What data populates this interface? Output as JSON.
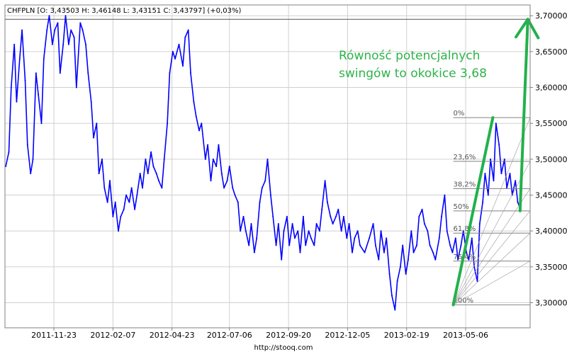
{
  "chart_data": {
    "type": "line",
    "header": "CHFPLN [O: 3,43503  H: 3,46148  L: 3,43151  C: 3,43797]  (+0,03%)",
    "source": "http://stooq.com",
    "xlabel": "",
    "ylabel": "",
    "ylim": [
      3.265,
      3.715
    ],
    "xlim": [
      "2011-09-21",
      "2013-07-28"
    ],
    "grid": true,
    "x_ticks": [
      "2011-11-23",
      "2012-02-07",
      "2012-04-23",
      "2012-07-06",
      "2012-09-20",
      "2012-12-05",
      "2013-02-19",
      "2013-05-06"
    ],
    "y_ticks": [
      "3,30000",
      "3,35000",
      "3,40000",
      "3,45000",
      "3,50000",
      "3,55000",
      "3,60000",
      "3,65000",
      "3,70000"
    ],
    "y_tick_values": [
      3.3,
      3.35,
      3.4,
      3.45,
      3.5,
      3.55,
      3.6,
      3.65,
      3.7
    ],
    "reference_line_value": 3.695,
    "series": [
      {
        "color": "#0000ff",
        "x": [
          "2011-09-22",
          "2011-09-26",
          "2011-09-29",
          "2011-10-03",
          "2011-10-06",
          "2011-10-10",
          "2011-10-13",
          "2011-10-17",
          "2011-10-20",
          "2011-10-24",
          "2011-10-27",
          "2011-10-31",
          "2011-11-03",
          "2011-11-07",
          "2011-11-10",
          "2011-11-14",
          "2011-11-17",
          "2011-11-21",
          "2011-11-24",
          "2011-11-28",
          "2011-12-01",
          "2011-12-05",
          "2011-12-08",
          "2011-12-12",
          "2011-12-15",
          "2011-12-19",
          "2011-12-22",
          "2011-12-27",
          "2011-12-30",
          "2012-01-03",
          "2012-01-06",
          "2012-01-10",
          "2012-01-13",
          "2012-01-17",
          "2012-01-20",
          "2012-01-24",
          "2012-01-27",
          "2012-01-31",
          "2012-02-03",
          "2012-02-07",
          "2012-02-10",
          "2012-02-14",
          "2012-02-17",
          "2012-02-21",
          "2012-02-24",
          "2012-02-28",
          "2012-03-02",
          "2012-03-06",
          "2012-03-09",
          "2012-03-13",
          "2012-03-16",
          "2012-03-20",
          "2012-03-23",
          "2012-03-27",
          "2012-03-30",
          "2012-04-03",
          "2012-04-06",
          "2012-04-10",
          "2012-04-13",
          "2012-04-17",
          "2012-04-20",
          "2012-04-24",
          "2012-04-27",
          "2012-05-02",
          "2012-05-07",
          "2012-05-10",
          "2012-05-14",
          "2012-05-17",
          "2012-05-21",
          "2012-05-24",
          "2012-05-28",
          "2012-05-31",
          "2012-06-05",
          "2012-06-08",
          "2012-06-12",
          "2012-06-15",
          "2012-06-19",
          "2012-06-22",
          "2012-06-26",
          "2012-06-29",
          "2012-07-03",
          "2012-07-06",
          "2012-07-10",
          "2012-07-13",
          "2012-07-17",
          "2012-07-20",
          "2012-07-24",
          "2012-07-27",
          "2012-07-31",
          "2012-08-03",
          "2012-08-07",
          "2012-08-10",
          "2012-08-14",
          "2012-08-17",
          "2012-08-21",
          "2012-08-24",
          "2012-08-28",
          "2012-08-31",
          "2012-09-04",
          "2012-09-07",
          "2012-09-11",
          "2012-09-14",
          "2012-09-18",
          "2012-09-21",
          "2012-09-25",
          "2012-09-28",
          "2012-10-02",
          "2012-10-05",
          "2012-10-09",
          "2012-10-12",
          "2012-10-16",
          "2012-10-19",
          "2012-10-23",
          "2012-10-26",
          "2012-10-30",
          "2012-11-02",
          "2012-11-06",
          "2012-11-09",
          "2012-11-13",
          "2012-11-16",
          "2012-11-20",
          "2012-11-23",
          "2012-11-27",
          "2012-11-30",
          "2012-12-04",
          "2012-12-07",
          "2012-12-11",
          "2012-12-14",
          "2012-12-18",
          "2012-12-21",
          "2012-12-27",
          "2013-01-02",
          "2013-01-07",
          "2013-01-10",
          "2013-01-14",
          "2013-01-17",
          "2013-01-21",
          "2013-01-24",
          "2013-01-28",
          "2013-01-31",
          "2013-02-04",
          "2013-02-07",
          "2013-02-11",
          "2013-02-14",
          "2013-02-18",
          "2013-02-21",
          "2013-02-25",
          "2013-02-28",
          "2013-03-04",
          "2013-03-07",
          "2013-03-11",
          "2013-03-14",
          "2013-03-18",
          "2013-03-21",
          "2013-03-25",
          "2013-03-28",
          "2013-04-02",
          "2013-04-05",
          "2013-04-09",
          "2013-04-12",
          "2013-04-16",
          "2013-04-19",
          "2013-04-23",
          "2013-04-26",
          "2013-04-30",
          "2013-05-03",
          "2013-05-07",
          "2013-05-10",
          "2013-05-14",
          "2013-05-17",
          "2013-05-21",
          "2013-05-24",
          "2013-05-28",
          "2013-05-31",
          "2013-06-04",
          "2013-06-07",
          "2013-06-11",
          "2013-06-14",
          "2013-06-18",
          "2013-06-21",
          "2013-06-25",
          "2013-06-28",
          "2013-07-02",
          "2013-07-05",
          "2013-07-09",
          "2013-07-12",
          "2013-07-16"
        ],
        "values": [
          3.49,
          3.51,
          3.6,
          3.66,
          3.58,
          3.64,
          3.68,
          3.61,
          3.52,
          3.48,
          3.5,
          3.62,
          3.59,
          3.55,
          3.64,
          3.68,
          3.7,
          3.66,
          3.68,
          3.69,
          3.62,
          3.66,
          3.7,
          3.66,
          3.68,
          3.67,
          3.6,
          3.69,
          3.68,
          3.66,
          3.62,
          3.58,
          3.53,
          3.55,
          3.48,
          3.5,
          3.46,
          3.44,
          3.47,
          3.42,
          3.44,
          3.4,
          3.42,
          3.43,
          3.45,
          3.44,
          3.46,
          3.43,
          3.45,
          3.48,
          3.46,
          3.5,
          3.48,
          3.51,
          3.49,
          3.48,
          3.47,
          3.46,
          3.5,
          3.55,
          3.62,
          3.65,
          3.64,
          3.66,
          3.63,
          3.67,
          3.68,
          3.62,
          3.58,
          3.56,
          3.54,
          3.55,
          3.5,
          3.52,
          3.47,
          3.5,
          3.49,
          3.52,
          3.48,
          3.46,
          3.47,
          3.49,
          3.46,
          3.45,
          3.44,
          3.4,
          3.42,
          3.4,
          3.38,
          3.41,
          3.37,
          3.39,
          3.44,
          3.46,
          3.47,
          3.5,
          3.45,
          3.42,
          3.38,
          3.41,
          3.36,
          3.4,
          3.42,
          3.38,
          3.41,
          3.39,
          3.4,
          3.37,
          3.42,
          3.38,
          3.4,
          3.39,
          3.38,
          3.41,
          3.4,
          3.43,
          3.47,
          3.44,
          3.42,
          3.41,
          3.42,
          3.43,
          3.4,
          3.42,
          3.39,
          3.41,
          3.37,
          3.39,
          3.4,
          3.38,
          3.37,
          3.39,
          3.41,
          3.38,
          3.36,
          3.4,
          3.37,
          3.39,
          3.34,
          3.31,
          3.29,
          3.33,
          3.35,
          3.38,
          3.34,
          3.36,
          3.4,
          3.37,
          3.38,
          3.42,
          3.43,
          3.41,
          3.4,
          3.38,
          3.37,
          3.36,
          3.39,
          3.42,
          3.45,
          3.4,
          3.38,
          3.37,
          3.39,
          3.36,
          3.38,
          3.4,
          3.37,
          3.36,
          3.39,
          3.35,
          3.33,
          3.41,
          3.44,
          3.48,
          3.45,
          3.5,
          3.47,
          3.55,
          3.52,
          3.48,
          3.5,
          3.46,
          3.48,
          3.45,
          3.47,
          3.44,
          3.43
        ]
      }
    ],
    "annotations": {
      "text_line1": "Równość potencjalnych",
      "text_line2": "swingów to okokice 3,68"
    },
    "fibonacci": {
      "levels": [
        {
          "label": "0%",
          "value": 3.558
        },
        {
          "label": "23,6%",
          "value": 3.497
        },
        {
          "label": "38,2%",
          "value": 3.459
        },
        {
          "label": "50%",
          "value": 3.428
        },
        {
          "label": "61,8%",
          "value": 3.397
        },
        {
          "label": "76,4%",
          "value": 3.358
        },
        {
          "label": "100%",
          "value": 3.297
        }
      ]
    },
    "trendlines": [
      {
        "color": "#22b14c",
        "from": [
          "2013-04-20",
          3.297
        ],
        "to": [
          "2013-06-10",
          3.558
        ]
      },
      {
        "color": "#22b14c",
        "from": [
          "2013-07-15",
          3.428
        ],
        "to": [
          "2013-07-25",
          3.695
        ]
      }
    ]
  }
}
